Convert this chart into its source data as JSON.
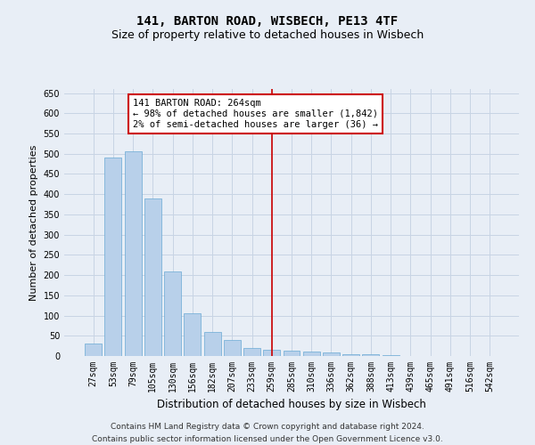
{
  "title": "141, BARTON ROAD, WISBECH, PE13 4TF",
  "subtitle": "Size of property relative to detached houses in Wisbech",
  "xlabel": "Distribution of detached houses by size in Wisbech",
  "ylabel": "Number of detached properties",
  "categories": [
    "27sqm",
    "53sqm",
    "79sqm",
    "105sqm",
    "130sqm",
    "156sqm",
    "182sqm",
    "207sqm",
    "233sqm",
    "259sqm",
    "285sqm",
    "310sqm",
    "336sqm",
    "362sqm",
    "388sqm",
    "413sqm",
    "439sqm",
    "465sqm",
    "491sqm",
    "516sqm",
    "542sqm"
  ],
  "values": [
    30,
    490,
    505,
    390,
    210,
    105,
    60,
    40,
    20,
    15,
    13,
    10,
    8,
    5,
    4,
    2,
    1,
    1,
    0,
    1,
    0
  ],
  "bar_color": "#b8d0ea",
  "bar_edge_color": "#6aaad4",
  "grid_color": "#c8d4e4",
  "background_color": "#e8eef6",
  "vline_color": "#cc0000",
  "vline_index": 9,
  "annotation_text": "141 BARTON ROAD: 264sqm\n← 98% of detached houses are smaller (1,842)\n2% of semi-detached houses are larger (36) →",
  "annotation_box_color": "#ffffff",
  "annotation_box_edge": "#cc0000",
  "ylim": [
    0,
    660
  ],
  "yticks": [
    0,
    50,
    100,
    150,
    200,
    250,
    300,
    350,
    400,
    450,
    500,
    550,
    600,
    650
  ],
  "footer": "Contains HM Land Registry data © Crown copyright and database right 2024.\nContains public sector information licensed under the Open Government Licence v3.0.",
  "title_fontsize": 10,
  "subtitle_fontsize": 9,
  "ylabel_fontsize": 8,
  "xlabel_fontsize": 8.5,
  "tick_fontsize": 7,
  "annotation_fontsize": 7.5,
  "footer_fontsize": 6.5
}
